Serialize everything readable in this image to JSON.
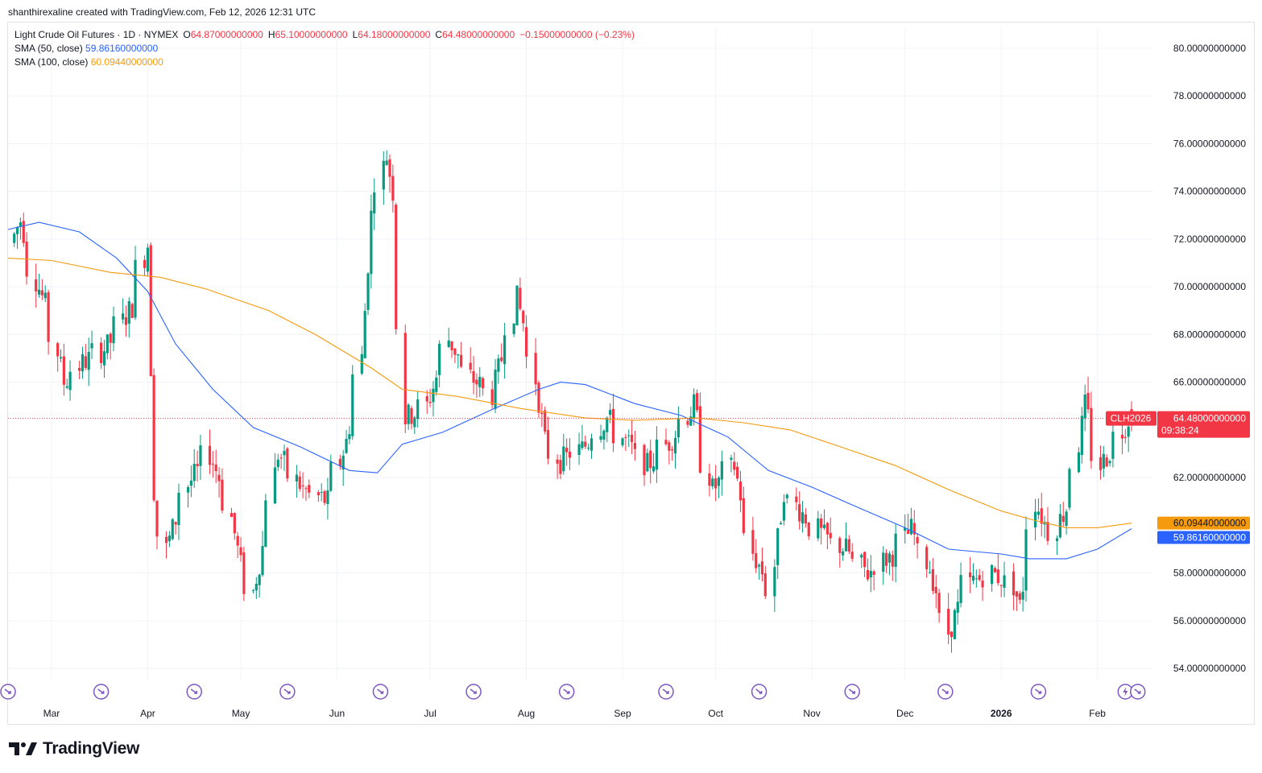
{
  "header": {
    "attribution": "shanthirexaline created with TradingView.com, Feb 12, 2026 12:31 UTC"
  },
  "legend": {
    "symbol": "Light Crude Oil Futures · 1D · NYMEX",
    "open_label": "O",
    "open": "64.87000000000",
    "high_label": "H",
    "high": "65.10000000000",
    "low_label": "L",
    "low": "64.18000000000",
    "close_label": "C",
    "close": "64.48000000000",
    "change": "−0.15000000000 (−0.23%)",
    "sma50_label": "SMA (50, close)",
    "sma50_value": "59.86160000000",
    "sma100_label": "SMA (100, close)",
    "sma100_value": "60.09440000000"
  },
  "price_axis": {
    "ticks": [
      "80.00000000000",
      "78.00000000000",
      "76.00000000000",
      "74.00000000000",
      "72.00000000000",
      "70.00000000000",
      "68.00000000000",
      "66.00000000000",
      "62.00000000000",
      "58.00000000000",
      "56.00000000000",
      "54.00000000000"
    ],
    "tick_values": [
      80,
      78,
      76,
      74,
      72,
      70,
      68,
      66,
      62,
      58,
      56,
      54
    ],
    "last_price_label": "CLH2026",
    "last_price": "64.48000000000",
    "countdown": "09:38:24",
    "sma100_tag": "60.09440000000",
    "sma50_tag": "59.86160000000"
  },
  "time_axis": {
    "labels": [
      "Mar",
      "Apr",
      "May",
      "Jun",
      "Jul",
      "Aug",
      "Sep",
      "Oct",
      "Nov",
      "Dec",
      "2026",
      "Feb"
    ]
  },
  "footer": {
    "brand": "TradingView"
  },
  "colors": {
    "up": "#089981",
    "down": "#f23645",
    "sma50": "#2962ff",
    "sma100": "#f59a0c",
    "grid": "#f0f3fa"
  },
  "chart_data": {
    "type": "candlestick",
    "title": "Light Crude Oil Futures · 1D · NYMEX",
    "symbol": "CLH2026",
    "ylim": [
      53.5,
      80.5
    ],
    "x_range": [
      "2025-02-15",
      "2026-02-19"
    ],
    "last_close": 64.48,
    "event_markers": [
      "2025-02-15",
      "2025-03-17",
      "2025-04-16",
      "2025-05-16",
      "2025-06-15",
      "2025-07-15",
      "2025-08-14",
      "2025-09-15",
      "2025-10-15",
      "2025-11-14",
      "2025-12-14",
      "2026-01-13",
      "2026-02-10",
      "2026-02-14"
    ],
    "price_keypoints": [
      [
        "2025-02-15",
        71.2
      ],
      [
        "2025-02-20",
        72.8
      ],
      [
        "2025-02-25",
        70.3
      ],
      [
        "2025-03-02",
        68.5
      ],
      [
        "2025-03-06",
        66.0
      ],
      [
        "2025-03-12",
        66.8
      ],
      [
        "2025-03-20",
        67.5
      ],
      [
        "2025-03-28",
        69.2
      ],
      [
        "2025-04-02",
        71.8
      ],
      [
        "2025-04-04",
        61.5
      ],
      [
        "2025-04-08",
        59.0
      ],
      [
        "2025-04-14",
        61.5
      ],
      [
        "2025-04-22",
        63.0
      ],
      [
        "2025-04-28",
        61.0
      ],
      [
        "2025-05-02",
        58.3
      ],
      [
        "2025-05-06",
        57.2
      ],
      [
        "2025-05-10",
        59.7
      ],
      [
        "2025-05-14",
        63.0
      ],
      [
        "2025-05-22",
        61.5
      ],
      [
        "2025-05-30",
        61.0
      ],
      [
        "2025-06-05",
        63.5
      ],
      [
        "2025-06-10",
        67.0
      ],
      [
        "2025-06-13",
        73.0
      ],
      [
        "2025-06-18",
        75.5
      ],
      [
        "2025-06-20",
        74.0
      ],
      [
        "2025-06-23",
        68.5
      ],
      [
        "2025-06-24",
        64.5
      ],
      [
        "2025-07-01",
        65.0
      ],
      [
        "2025-07-08",
        67.8
      ],
      [
        "2025-07-15",
        66.2
      ],
      [
        "2025-07-22",
        65.5
      ],
      [
        "2025-07-30",
        69.5
      ],
      [
        "2025-08-04",
        67.0
      ],
      [
        "2025-08-08",
        63.5
      ],
      [
        "2025-08-13",
        62.7
      ],
      [
        "2025-08-20",
        63.2
      ],
      [
        "2025-08-28",
        64.5
      ],
      [
        "2025-09-03",
        63.5
      ],
      [
        "2025-09-10",
        62.5
      ],
      [
        "2025-09-17",
        63.5
      ],
      [
        "2025-09-25",
        65.0
      ],
      [
        "2025-10-01",
        61.5
      ],
      [
        "2025-10-08",
        62.5
      ],
      [
        "2025-10-14",
        58.8
      ],
      [
        "2025-10-20",
        57.3
      ],
      [
        "2025-10-24",
        61.5
      ],
      [
        "2025-10-30",
        60.5
      ],
      [
        "2025-11-06",
        59.5
      ],
      [
        "2025-11-13",
        59.0
      ],
      [
        "2025-11-20",
        58.0
      ],
      [
        "2025-11-28",
        58.8
      ],
      [
        "2025-12-04",
        59.8
      ],
      [
        "2025-12-10",
        58.2
      ],
      [
        "2025-12-16",
        55.5
      ],
      [
        "2025-12-22",
        57.5
      ],
      [
        "2025-12-30",
        58.0
      ],
      [
        "2026-01-06",
        57.5
      ],
      [
        "2026-01-08",
        56.6
      ],
      [
        "2026-01-13",
        61.0
      ],
      [
        "2026-01-18",
        59.5
      ],
      [
        "2026-01-24",
        61.0
      ],
      [
        "2026-01-29",
        65.0
      ],
      [
        "2026-02-03",
        62.5
      ],
      [
        "2026-02-08",
        63.5
      ],
      [
        "2026-02-12",
        64.48
      ]
    ],
    "series": [
      {
        "name": "SMA (50, close)",
        "color": "#2962ff",
        "last": 59.8616,
        "points": [
          [
            "2025-02-15",
            72.4
          ],
          [
            "2025-02-25",
            72.7
          ],
          [
            "2025-03-10",
            72.3
          ],
          [
            "2025-03-22",
            71.2
          ],
          [
            "2025-04-01",
            69.8
          ],
          [
            "2025-04-10",
            67.6
          ],
          [
            "2025-04-22",
            65.7
          ],
          [
            "2025-05-05",
            64.1
          ],
          [
            "2025-05-20",
            63.3
          ],
          [
            "2025-06-05",
            62.3
          ],
          [
            "2025-06-14",
            62.2
          ],
          [
            "2025-06-22",
            63.4
          ],
          [
            "2025-07-05",
            63.9
          ],
          [
            "2025-07-20",
            64.8
          ],
          [
            "2025-08-05",
            65.7
          ],
          [
            "2025-08-12",
            66.0
          ],
          [
            "2025-08-20",
            65.9
          ],
          [
            "2025-09-05",
            65.1
          ],
          [
            "2025-09-20",
            64.6
          ],
          [
            "2025-10-05",
            63.7
          ],
          [
            "2025-10-18",
            62.3
          ],
          [
            "2025-11-01",
            61.6
          ],
          [
            "2025-11-15",
            60.8
          ],
          [
            "2025-12-01",
            59.9
          ],
          [
            "2025-12-15",
            59.0
          ],
          [
            "2026-01-01",
            58.8
          ],
          [
            "2026-01-10",
            58.6
          ],
          [
            "2026-01-22",
            58.6
          ],
          [
            "2026-02-01",
            59.0
          ],
          [
            "2026-02-12",
            59.86
          ]
        ]
      },
      {
        "name": "SMA (100, close)",
        "color": "#f59a0c",
        "last": 60.0944,
        "points": [
          [
            "2025-02-15",
            71.2
          ],
          [
            "2025-03-01",
            71.1
          ],
          [
            "2025-03-20",
            70.6
          ],
          [
            "2025-04-05",
            70.4
          ],
          [
            "2025-04-20",
            69.9
          ],
          [
            "2025-05-10",
            69.0
          ],
          [
            "2025-05-25",
            68.0
          ],
          [
            "2025-06-12",
            66.6
          ],
          [
            "2025-06-22",
            65.7
          ],
          [
            "2025-07-10",
            65.4
          ],
          [
            "2025-07-30",
            64.9
          ],
          [
            "2025-08-20",
            64.5
          ],
          [
            "2025-09-05",
            64.4
          ],
          [
            "2025-09-25",
            64.5
          ],
          [
            "2025-10-10",
            64.3
          ],
          [
            "2025-10-25",
            64.0
          ],
          [
            "2025-11-10",
            63.3
          ],
          [
            "2025-11-28",
            62.5
          ],
          [
            "2025-12-15",
            61.5
          ],
          [
            "2026-01-01",
            60.6
          ],
          [
            "2026-01-12",
            60.2
          ],
          [
            "2026-01-22",
            59.9
          ],
          [
            "2026-02-01",
            59.9
          ],
          [
            "2026-02-12",
            60.09
          ]
        ]
      }
    ]
  }
}
